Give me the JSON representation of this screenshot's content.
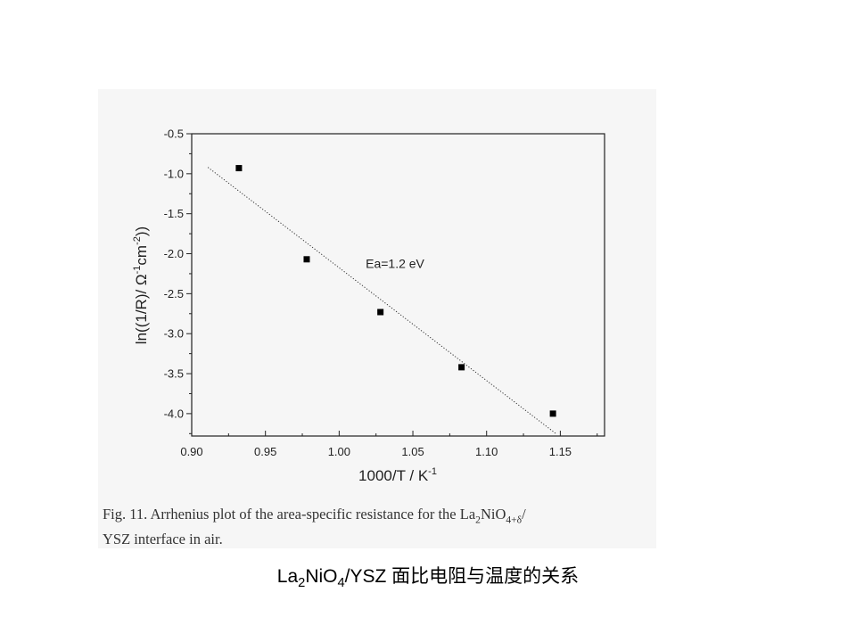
{
  "chart_data": {
    "type": "scatter",
    "xlabel": "1000/T / K",
    "xlabel_sup": "-1",
    "ylabel_parts": [
      "ln((1/R)/ Ω",
      "-1",
      "cm",
      "-2",
      "))"
    ],
    "xlim": [
      0.9,
      1.18
    ],
    "ylim": [
      -4.28,
      -0.5
    ],
    "x_ticks": [
      "0.90",
      "0.95",
      "1.00",
      "1.05",
      "1.10",
      "1.15"
    ],
    "y_ticks": [
      "-0.5",
      "-1.0",
      "-1.5",
      "-2.0",
      "-2.5",
      "-3.0",
      "-3.5",
      "-4.0"
    ],
    "grid": false,
    "series": [
      {
        "marker": "square",
        "color": "#000000",
        "points": [
          {
            "x": 0.932,
            "y": -0.93
          },
          {
            "x": 0.978,
            "y": -2.07
          },
          {
            "x": 1.028,
            "y": -2.73
          },
          {
            "x": 1.083,
            "y": -3.42
          },
          {
            "x": 1.145,
            "y": -4.0
          }
        ]
      }
    ],
    "fit_line": {
      "style": "dotted",
      "color": "#333333",
      "points": [
        {
          "x": 0.911,
          "y": -0.92
        },
        {
          "x": 1.147,
          "y": -4.25
        }
      ]
    },
    "annotation": {
      "text": "Ea=1.2 eV",
      "x": 1.018,
      "y": -2.18
    }
  },
  "figure_caption": {
    "line1_prefix": "Fig. 11.  Arrhenius plot of the area-specific resistance for the La",
    "sub1": "2",
    "mid": "NiO",
    "sub2": "4+δ",
    "line1_suffix": "/",
    "line2": "YSZ interface in air."
  },
  "slide_caption": {
    "prefix": "La",
    "sub1": "2",
    "mid": "NiO",
    "sub2": "4",
    "suffix": "/YSZ 面比电阻与温度的关系"
  }
}
